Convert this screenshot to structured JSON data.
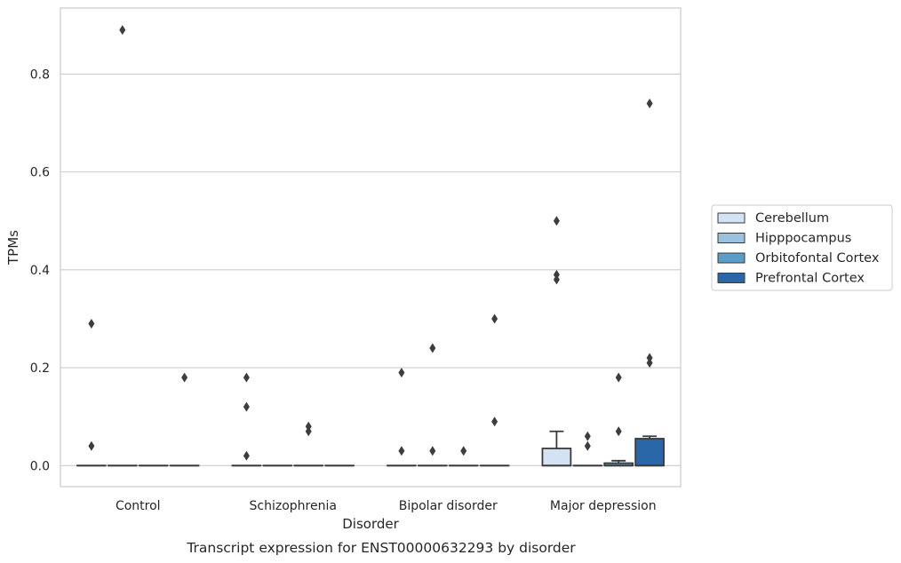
{
  "chart_data": {
    "type": "box",
    "caption": "Transcript expression for ENST00000632293 by disorder",
    "xlabel": "Disorder",
    "ylabel": "TPMs",
    "ylim": [
      -0.043,
      0.935
    ],
    "yticks": [
      0.0,
      0.2,
      0.4,
      0.6,
      0.8
    ],
    "ytick_labels": [
      "0.0",
      "0.2",
      "0.4",
      "0.6",
      "0.8"
    ],
    "grid": "horizontal",
    "legend_position": "center-right",
    "categories": [
      "Control",
      "Schizophrenia",
      "Bipolar disorder",
      "Major depression"
    ],
    "series": [
      {
        "name": "Cerebellum",
        "color": "#d4e3f3",
        "boxes": [
          {
            "q1": 0,
            "median": 0,
            "q3": 0,
            "whisker_low": 0,
            "whisker_high": 0,
            "outliers": [
              0.29,
              0.04
            ]
          },
          {
            "q1": 0,
            "median": 0,
            "q3": 0,
            "whisker_low": 0,
            "whisker_high": 0,
            "outliers": [
              0.18,
              0.12,
              0.02
            ]
          },
          {
            "q1": 0,
            "median": 0,
            "q3": 0,
            "whisker_low": 0,
            "whisker_high": 0,
            "outliers": [
              0.19,
              0.03
            ]
          },
          {
            "q1": 0,
            "median": 0,
            "q3": 0.035,
            "whisker_low": 0,
            "whisker_high": 0.07,
            "outliers": [
              0.5,
              0.39,
              0.38
            ]
          }
        ]
      },
      {
        "name": "Hipppocampus",
        "color": "#9ac2dd",
        "boxes": [
          {
            "q1": 0,
            "median": 0,
            "q3": 0,
            "whisker_low": 0,
            "whisker_high": 0,
            "outliers": [
              0.89
            ]
          },
          {
            "q1": 0,
            "median": 0,
            "q3": 0,
            "whisker_low": 0,
            "whisker_high": 0,
            "outliers": []
          },
          {
            "q1": 0,
            "median": 0,
            "q3": 0,
            "whisker_low": 0,
            "whisker_high": 0,
            "outliers": [
              0.24,
              0.03
            ]
          },
          {
            "q1": 0,
            "median": 0,
            "q3": 0,
            "whisker_low": 0,
            "whisker_high": 0,
            "outliers": [
              0.06,
              0.04
            ]
          }
        ]
      },
      {
        "name": "Orbitofontal Cortex",
        "color": "#5a9dc8",
        "boxes": [
          {
            "q1": 0,
            "median": 0,
            "q3": 0,
            "whisker_low": 0,
            "whisker_high": 0,
            "outliers": []
          },
          {
            "q1": 0,
            "median": 0,
            "q3": 0,
            "whisker_low": 0,
            "whisker_high": 0,
            "outliers": [
              0.08,
              0.07
            ]
          },
          {
            "q1": 0,
            "median": 0,
            "q3": 0,
            "whisker_low": 0,
            "whisker_high": 0,
            "outliers": [
              0.03
            ]
          },
          {
            "q1": 0,
            "median": 0,
            "q3": 0.005,
            "whisker_low": 0,
            "whisker_high": 0.01,
            "outliers": [
              0.18,
              0.07
            ]
          }
        ]
      },
      {
        "name": "Prefrontal Cortex",
        "color": "#2967a9",
        "boxes": [
          {
            "q1": 0,
            "median": 0,
            "q3": 0,
            "whisker_low": 0,
            "whisker_high": 0,
            "outliers": [
              0.18
            ]
          },
          {
            "q1": 0,
            "median": 0,
            "q3": 0,
            "whisker_low": 0,
            "whisker_high": 0,
            "outliers": []
          },
          {
            "q1": 0,
            "median": 0,
            "q3": 0,
            "whisker_low": 0,
            "whisker_high": 0,
            "outliers": [
              0.3,
              0.09
            ]
          },
          {
            "q1": 0,
            "median": 0,
            "q3": 0.055,
            "whisker_low": 0,
            "whisker_high": 0.06,
            "outliers": [
              0.74,
              0.22,
              0.21
            ]
          }
        ]
      }
    ]
  }
}
